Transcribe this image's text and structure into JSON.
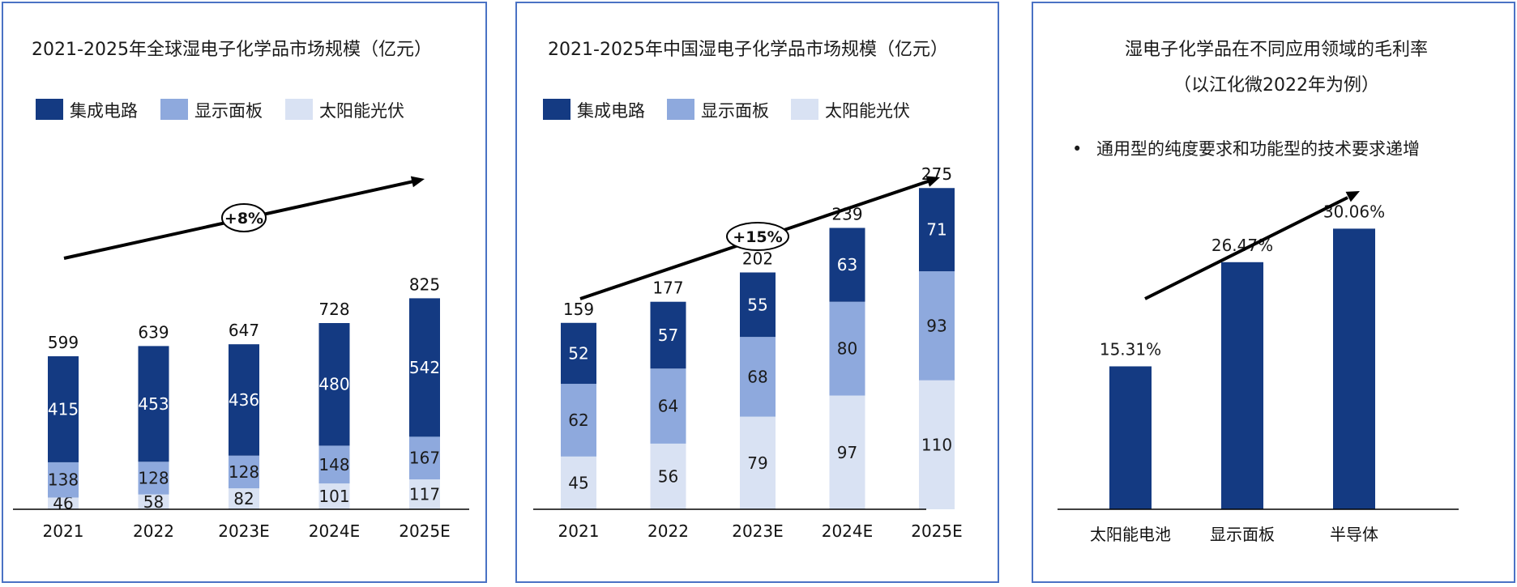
{
  "colors": {
    "ic": "#143a82",
    "display": "#8ea9dd",
    "solar": "#d9e2f3",
    "arrow": "#000000",
    "axis": "#000000"
  },
  "chart_data": [
    {
      "type": "bar",
      "stacked": true,
      "title": "2021-2025年全球湿电子化学品市场规模（亿元）",
      "categories": [
        "2021",
        "2022",
        "2023E",
        "2024E",
        "2025E"
      ],
      "series": [
        {
          "name": "集成电路",
          "values": [
            415,
            453,
            436,
            480,
            542
          ]
        },
        {
          "name": "显示面板",
          "values": [
            138,
            128,
            128,
            148,
            167
          ]
        },
        {
          "name": "太阳能光伏",
          "values": [
            46,
            58,
            82,
            101,
            117
          ]
        }
      ],
      "totals": [
        599,
        639,
        647,
        728,
        825
      ],
      "legend": "top-left",
      "annotations": [
        "+8%"
      ]
    },
    {
      "type": "bar",
      "stacked": true,
      "title": "2021-2025年中国湿电子化学品市场规模（亿元）",
      "categories": [
        "2021",
        "2022",
        "2023E",
        "2024E",
        "2025E"
      ],
      "series": [
        {
          "name": "集成电路",
          "values": [
            52,
            57,
            55,
            63,
            71
          ]
        },
        {
          "name": "显示面板",
          "values": [
            62,
            64,
            68,
            80,
            93
          ]
        },
        {
          "name": "太阳能光伏",
          "values": [
            45,
            56,
            79,
            97,
            110
          ]
        }
      ],
      "totals": [
        159,
        177,
        202,
        239,
        275
      ],
      "legend": "top-left",
      "annotations": [
        "+15%"
      ]
    },
    {
      "type": "bar",
      "title": "湿电子化学品在不同应用领域的毛利率",
      "subtitle": "（以江化微2022年为例）",
      "bullet": "通用型的纯度要求和功能型的技术要求递增",
      "categories": [
        "太阳能电池",
        "显示面板",
        "半导体"
      ],
      "values": [
        15.31,
        26.47,
        30.06
      ],
      "data_labels": [
        "15.31%",
        "26.47%",
        "30.06%"
      ]
    }
  ]
}
